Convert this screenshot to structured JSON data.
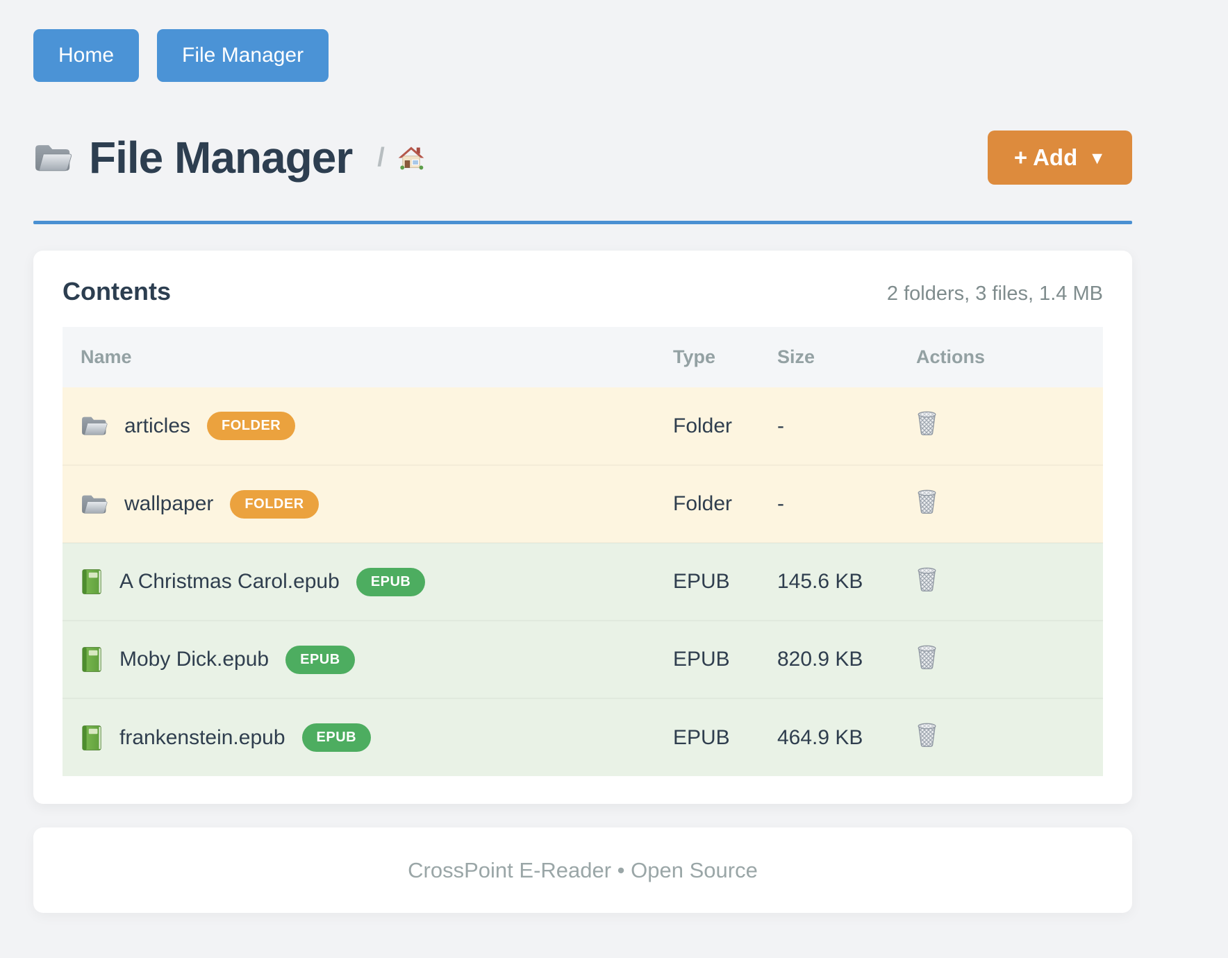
{
  "nav": {
    "buttons": [
      {
        "label": "Home"
      },
      {
        "label": "File Manager"
      }
    ]
  },
  "header": {
    "title": "File Manager",
    "title_icon": "folder-icon",
    "breadcrumb_separator": "/",
    "breadcrumb_home_icon": "home-icon",
    "add_button_label": "+ Add",
    "add_button_caret": "▼"
  },
  "contents": {
    "title": "Contents",
    "summary": "2 folders, 3 files, 1.4 MB",
    "columns": [
      "Name",
      "Type",
      "Size",
      "Actions"
    ],
    "rows": [
      {
        "icon": "folder-icon",
        "name": "articles",
        "badge": "FOLDER",
        "kind": "folder",
        "type": "Folder",
        "size": "-",
        "action_icon": "trash-icon"
      },
      {
        "icon": "folder-icon",
        "name": "wallpaper",
        "badge": "FOLDER",
        "kind": "folder",
        "type": "Folder",
        "size": "-",
        "action_icon": "trash-icon"
      },
      {
        "icon": "book-icon",
        "name": "A Christmas Carol.epub",
        "badge": "EPUB",
        "kind": "epub",
        "type": "EPUB",
        "size": "145.6 KB",
        "action_icon": "trash-icon"
      },
      {
        "icon": "book-icon",
        "name": "Moby Dick.epub",
        "badge": "EPUB",
        "kind": "epub",
        "type": "EPUB",
        "size": "820.9 KB",
        "action_icon": "trash-icon"
      },
      {
        "icon": "book-icon",
        "name": "frankenstein.epub",
        "badge": "EPUB",
        "kind": "epub",
        "type": "EPUB",
        "size": "464.9 KB",
        "action_icon": "trash-icon"
      }
    ]
  },
  "footer": {
    "text": "CrossPoint E-Reader • Open Source"
  },
  "colors": {
    "button_blue": "#4b93d6",
    "divider_blue": "#4a90d2",
    "add_orange": "#dd8b3d",
    "folder_badge_orange": "#eba23e",
    "epub_badge_green": "#4dad60",
    "folder_row_bg": "#fdf5e0",
    "epub_row_bg": "#e9f2e6"
  }
}
